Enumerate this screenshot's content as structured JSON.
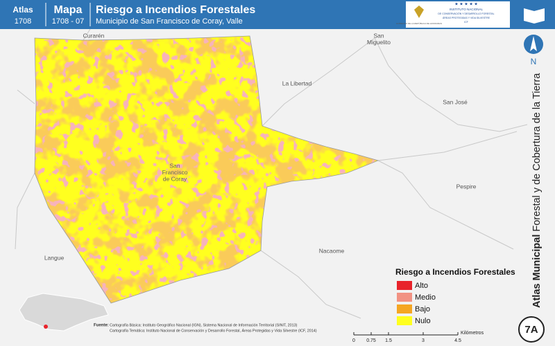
{
  "header": {
    "atlas_label": "Atlas",
    "atlas_code": "1708",
    "map_label": "Mapa",
    "map_code": "1708 - 07",
    "title": "Riesgo a Incendios Forestales",
    "subtitle": "Municipio de San Francisco de Coray, Valle",
    "logo_left": "GOBIERNO DE LA REPÚBLICA DE HONDURAS",
    "logo_right": [
      "INSTITUTO NACIONAL",
      "DE CONSERVACIÓN Y DESARROLLO FORESTAL",
      "ÁREAS PROTEGIDAS Y VIDA SILVESTRE",
      "ICF"
    ]
  },
  "places": [
    {
      "lines": [
        "Curarén"
      ]
    },
    {
      "lines": [
        "San",
        "Miguelito"
      ]
    },
    {
      "lines": [
        "La Libertad"
      ]
    },
    {
      "lines": [
        "San José"
      ]
    },
    {
      "lines": [
        "San",
        "Francisco",
        "de Coray"
      ]
    },
    {
      "lines": [
        "Pespire"
      ]
    },
    {
      "lines": [
        "Nacaome"
      ]
    },
    {
      "lines": [
        "Langue"
      ]
    }
  ],
  "legend": {
    "title": "Riesgo a Incendios Forestales",
    "items": [
      {
        "label": "Alto",
        "color": "#e8232b"
      },
      {
        "label": "Medio",
        "color": "#f29283"
      },
      {
        "label": "Bajo",
        "color": "#f5a623"
      },
      {
        "label": "Nulo",
        "color": "#ffff1f"
      }
    ]
  },
  "north": "N",
  "side_title": {
    "bold": "Atlas Municipal",
    "rest": " Forestal y de Cobertura de la Tierra"
  },
  "badge": "7A",
  "scale": {
    "ticks": [
      0,
      0.75,
      1.5,
      3,
      4.5
    ],
    "unit": "Kilómetros"
  },
  "sources": {
    "label": "Fuente:",
    "lines": [
      "Cartografía Básica: Instituto Geográfico Nacional (IGN), Sistema Nacional de Información Territorial (SINIT, 2013)",
      "Cartografía Temática: Instituto Nacional de Conservación y Desarrollo Forestal, Áreas Protegidas y Vida Silvestre (ICF, 2014)"
    ]
  }
}
